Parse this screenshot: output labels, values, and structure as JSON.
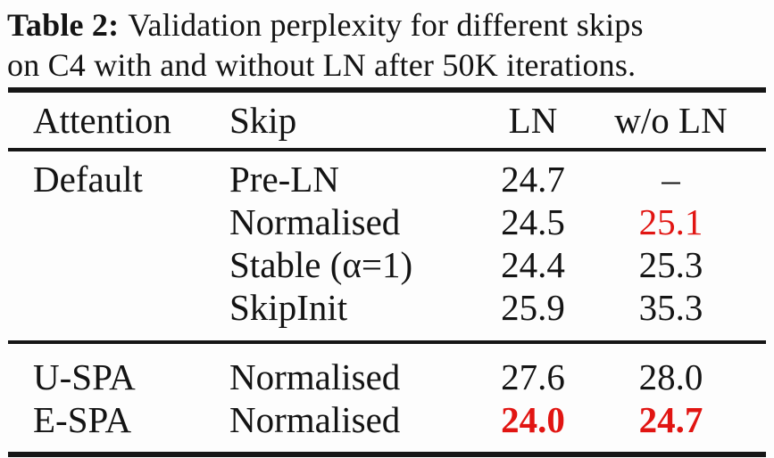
{
  "caption": {
    "label": "Table 2:",
    "line1": "Validation perplexity for different skips",
    "line2": "on C4 with and without LN after 50K iterations."
  },
  "table": {
    "columns": [
      "Attention",
      "Skip",
      "LN",
      "w/o LN"
    ],
    "sections": [
      {
        "rows": [
          {
            "attention": "Default",
            "skip": "Pre-LN",
            "ln": "24.7",
            "wo_ln": "–",
            "ln_style": "normal",
            "wo_ln_style": "normal"
          },
          {
            "attention": "",
            "skip": "Normalised",
            "ln": "24.5",
            "wo_ln": "25.1",
            "ln_style": "normal",
            "wo_ln_style": "red"
          },
          {
            "attention": "",
            "skip": "Stable (α=1)",
            "ln": "24.4",
            "wo_ln": "25.3",
            "ln_style": "normal",
            "wo_ln_style": "normal"
          },
          {
            "attention": "",
            "skip": "SkipInit",
            "ln": "25.9",
            "wo_ln": "35.3",
            "ln_style": "normal",
            "wo_ln_style": "normal"
          }
        ]
      },
      {
        "rows": [
          {
            "attention": "U-SPA",
            "skip": "Normalised",
            "ln": "27.6",
            "wo_ln": "28.0",
            "ln_style": "normal",
            "wo_ln_style": "normal"
          },
          {
            "attention": "E-SPA",
            "skip": "Normalised",
            "ln": "24.0",
            "wo_ln": "24.7",
            "ln_style": "red-bold",
            "wo_ln_style": "red-bold"
          }
        ]
      }
    ]
  },
  "colors": {
    "highlight_red": "#e11512",
    "text_black": "#141414",
    "rule_black": "#161616"
  }
}
